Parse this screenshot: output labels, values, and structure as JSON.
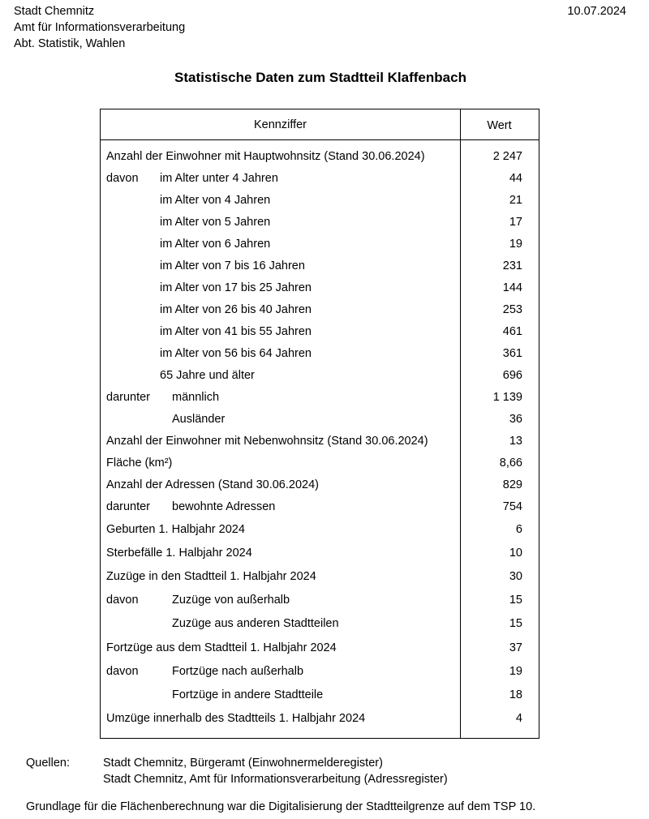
{
  "header": {
    "lines": [
      "Stadt Chemnitz",
      "Amt für Informationsverarbeitung",
      "Abt. Statistik, Wahlen"
    ],
    "date": "10.07.2024"
  },
  "title": "Statistische Daten zum Stadtteil Klaffenbach",
  "table": {
    "columns": [
      "Kennziffer",
      "Wert"
    ],
    "rows": [
      {
        "label": "Anzahl der Einwohner mit Hauptwohnsitz (Stand 30.06.2024)",
        "sub": "",
        "value": "2 247"
      },
      {
        "label": "davon",
        "sub": "im Alter unter 4 Jahren",
        "value": "44"
      },
      {
        "label": "",
        "sub": "im Alter von 4 Jahren",
        "value": "21"
      },
      {
        "label": "",
        "sub": "im Alter von 5 Jahren",
        "value": "17"
      },
      {
        "label": "",
        "sub": "im Alter von 6 Jahren",
        "value": "19"
      },
      {
        "label": "",
        "sub": "im Alter von 7 bis 16 Jahren",
        "value": "231"
      },
      {
        "label": "",
        "sub": "im Alter von 17 bis 25 Jahren",
        "value": "144"
      },
      {
        "label": "",
        "sub": "im Alter von 26 bis 40 Jahren",
        "value": "253"
      },
      {
        "label": "",
        "sub": "im Alter von 41 bis 55 Jahren",
        "value": "461"
      },
      {
        "label": "",
        "sub": "im Alter von 56 bis 64 Jahren",
        "value": "361"
      },
      {
        "label": "",
        "sub": "65 Jahre und älter",
        "value": "696"
      },
      {
        "label": "darunter",
        "sub": "männlich",
        "value": "1 139"
      },
      {
        "label": "",
        "sub": "Ausländer",
        "value": "36"
      },
      {
        "label": "Anzahl der Einwohner mit Nebenwohnsitz  (Stand 30.06.2024)",
        "sub": "",
        "value": "13"
      },
      {
        "label": "Fläche (km²)",
        "sub": "",
        "value": "8,66"
      },
      {
        "label": "Anzahl der Adressen (Stand 30.06.2024)",
        "sub": "",
        "value": "829"
      },
      {
        "label": "darunter",
        "sub": "bewohnte Adressen",
        "value": "754"
      },
      {
        "label": "Geburten 1. Halbjahr 2024",
        "sub": "",
        "value": "6"
      },
      {
        "label": "Sterbefälle 1. Halbjahr 2024",
        "sub": "",
        "value": "10"
      },
      {
        "label": "Zuzüge in den Stadtteil 1. Halbjahr 2024",
        "sub": "",
        "value": "30"
      },
      {
        "label": "davon",
        "sub": "Zuzüge von außerhalb",
        "value": "15"
      },
      {
        "label": "",
        "sub": "Zuzüge aus anderen Stadtteilen",
        "value": "15"
      },
      {
        "label": "Fortzüge aus dem Stadtteil 1. Halbjahr 2024",
        "sub": "",
        "value": "37"
      },
      {
        "label": "davon",
        "sub": "Fortzüge nach außerhalb",
        "value": "19"
      },
      {
        "label": "",
        "sub": "Fortzüge in andere Stadtteile",
        "value": "18"
      },
      {
        "label": "Umzüge innerhalb des Stadtteils 1. Halbjahr 2024",
        "sub": "",
        "value": "4"
      }
    ]
  },
  "sources": {
    "label": "Quellen:",
    "lines": [
      "Stadt Chemnitz, Bürgeramt (Einwohnermelderegister)",
      "Stadt Chemnitz, Amt für Informationsverarbeitung (Adressregister)"
    ]
  },
  "footnote": "Grundlage für die Flächenberechnung war die Digitalisierung der Stadtteilgrenze auf dem TSP 10."
}
